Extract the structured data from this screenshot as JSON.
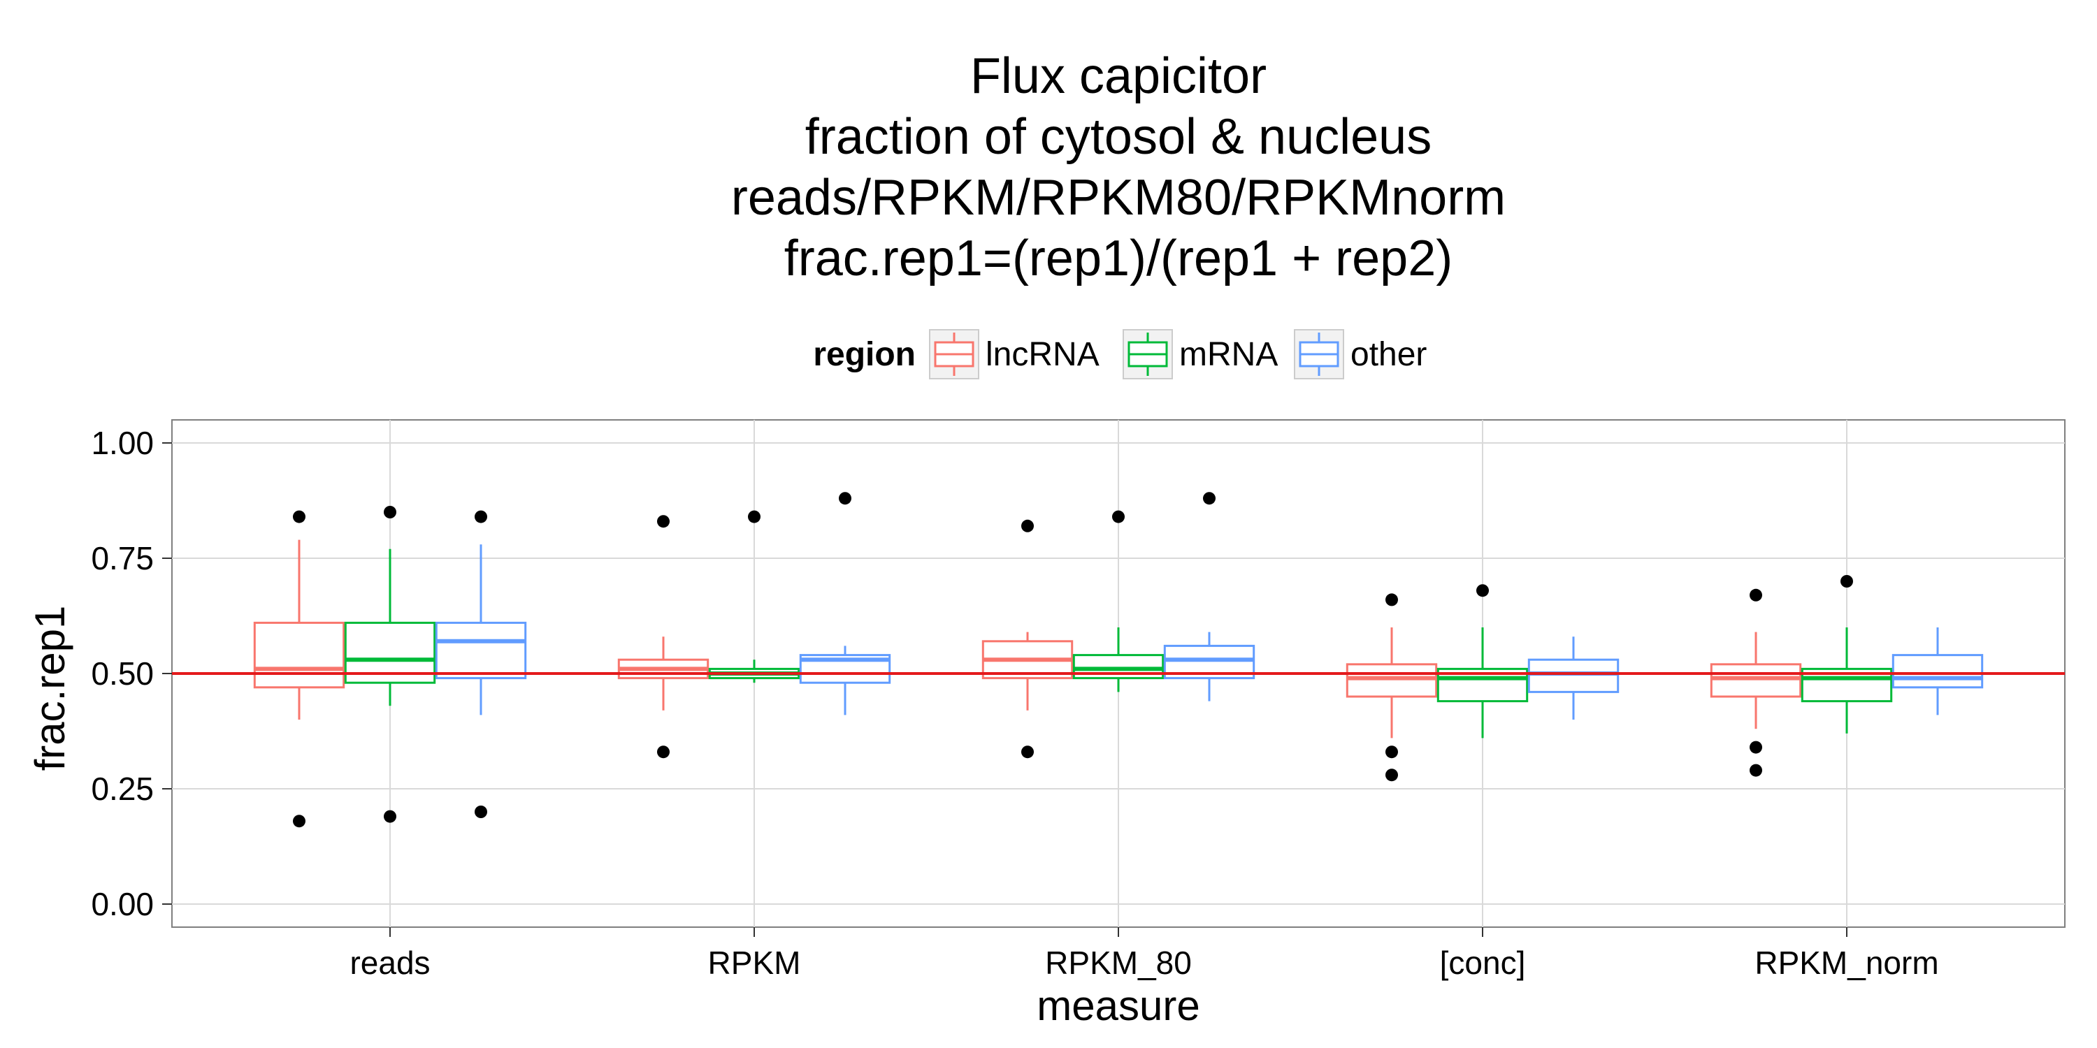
{
  "chart_data": {
    "type": "boxplot",
    "title_lines": [
      "Flux capicitor",
      "fraction of cytosol & nucleus",
      "reads/RPKM/RPKM80/RPKMnorm",
      "frac.rep1=(rep1)/(rep1 + rep2)"
    ],
    "xlabel": "measure",
    "ylabel": "frac.rep1",
    "ylim": [
      -0.05,
      1.05
    ],
    "yticks": [
      0.0,
      0.25,
      0.5,
      0.75,
      1.0
    ],
    "ytick_labels": [
      "0.00",
      "0.25",
      "0.50",
      "0.75",
      "1.00"
    ],
    "categories": [
      "reads",
      "RPKM",
      "RPKM_80",
      "[conc]",
      "RPKM_norm"
    ],
    "reference_line": {
      "y": 0.5,
      "color": "#e41a1c"
    },
    "grid": true,
    "legend": {
      "title": "region",
      "position": "top"
    },
    "series": [
      {
        "name": "lncRNA",
        "color": "#f8766d",
        "boxes": [
          {
            "whisker_low": 0.4,
            "q1": 0.47,
            "median": 0.51,
            "q3": 0.61,
            "whisker_high": 0.79,
            "outliers": [
              0.84,
              0.18
            ]
          },
          {
            "whisker_low": 0.42,
            "q1": 0.49,
            "median": 0.51,
            "q3": 0.53,
            "whisker_high": 0.58,
            "outliers": [
              0.83,
              0.33
            ]
          },
          {
            "whisker_low": 0.42,
            "q1": 0.49,
            "median": 0.53,
            "q3": 0.57,
            "whisker_high": 0.59,
            "outliers": [
              0.82,
              0.33
            ]
          },
          {
            "whisker_low": 0.36,
            "q1": 0.45,
            "median": 0.49,
            "q3": 0.52,
            "whisker_high": 0.6,
            "outliers": [
              0.66,
              0.33,
              0.28
            ]
          },
          {
            "whisker_low": 0.38,
            "q1": 0.45,
            "median": 0.49,
            "q3": 0.52,
            "whisker_high": 0.59,
            "outliers": [
              0.67,
              0.34,
              0.29
            ]
          }
        ]
      },
      {
        "name": "mRNA",
        "color": "#00ba38",
        "boxes": [
          {
            "whisker_low": 0.43,
            "q1": 0.48,
            "median": 0.53,
            "q3": 0.61,
            "whisker_high": 0.77,
            "outliers": [
              0.85,
              0.19
            ]
          },
          {
            "whisker_low": 0.48,
            "q1": 0.49,
            "median": 0.5,
            "q3": 0.51,
            "whisker_high": 0.53,
            "outliers": [
              0.84
            ]
          },
          {
            "whisker_low": 0.46,
            "q1": 0.49,
            "median": 0.51,
            "q3": 0.54,
            "whisker_high": 0.6,
            "outliers": [
              0.84
            ]
          },
          {
            "whisker_low": 0.36,
            "q1": 0.44,
            "median": 0.49,
            "q3": 0.51,
            "whisker_high": 0.6,
            "outliers": [
              0.68
            ]
          },
          {
            "whisker_low": 0.37,
            "q1": 0.44,
            "median": 0.49,
            "q3": 0.51,
            "whisker_high": 0.6,
            "outliers": [
              0.7
            ]
          }
        ]
      },
      {
        "name": "other",
        "color": "#619cff",
        "boxes": [
          {
            "whisker_low": 0.41,
            "q1": 0.49,
            "median": 0.57,
            "q3": 0.61,
            "whisker_high": 0.78,
            "outliers": [
              0.84,
              0.2
            ]
          },
          {
            "whisker_low": 0.41,
            "q1": 0.48,
            "median": 0.53,
            "q3": 0.54,
            "whisker_high": 0.56,
            "outliers": [
              0.88
            ]
          },
          {
            "whisker_low": 0.44,
            "q1": 0.49,
            "median": 0.53,
            "q3": 0.56,
            "whisker_high": 0.59,
            "outliers": [
              0.88
            ]
          },
          {
            "whisker_low": 0.4,
            "q1": 0.46,
            "median": 0.5,
            "q3": 0.53,
            "whisker_high": 0.58,
            "outliers": []
          },
          {
            "whisker_low": 0.41,
            "q1": 0.47,
            "median": 0.49,
            "q3": 0.54,
            "whisker_high": 0.6,
            "outliers": []
          }
        ]
      }
    ]
  }
}
